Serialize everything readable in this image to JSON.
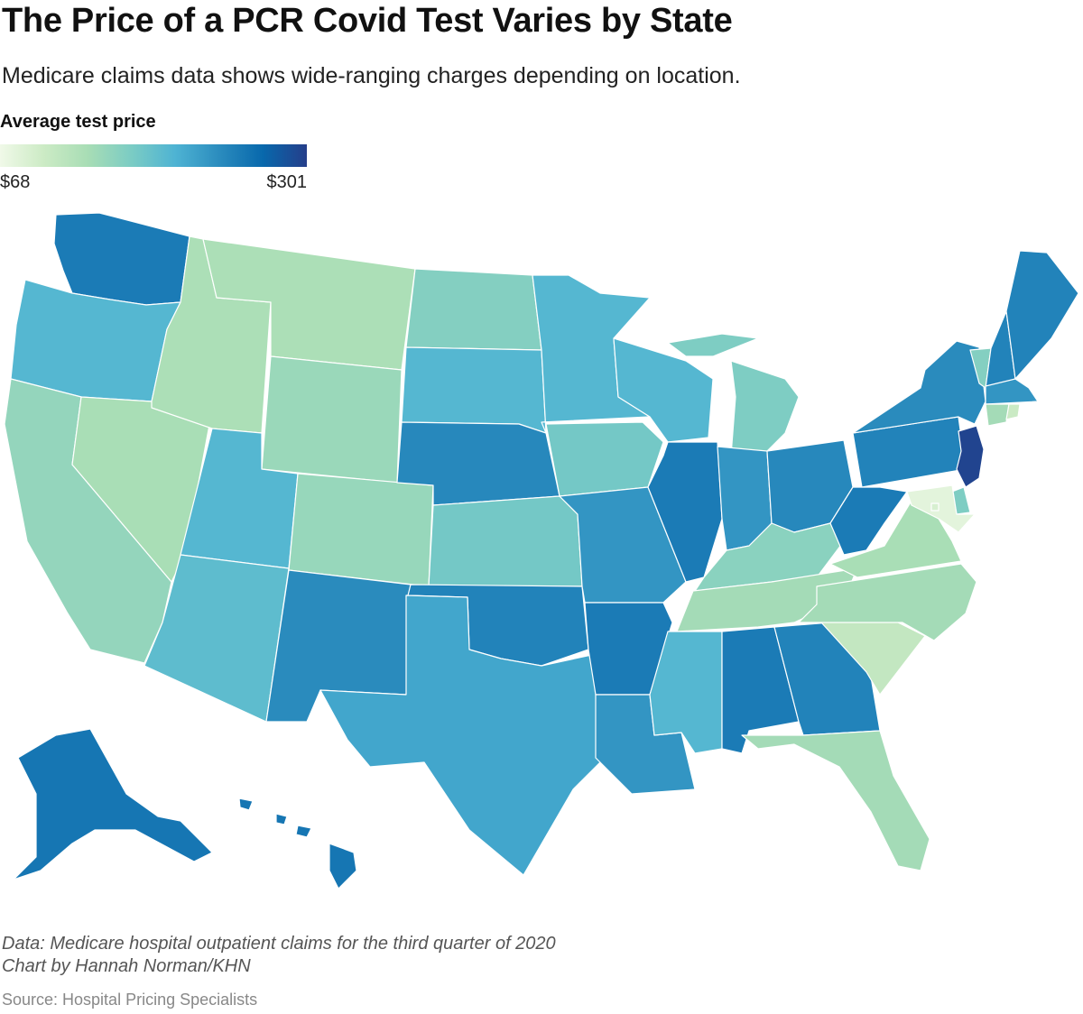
{
  "title": "The Price of a PCR Covid Test Varies by State",
  "subtitle": "Medicare claims data shows wide-ranging charges depending on location.",
  "legend": {
    "title": "Average test price",
    "min_label": "$68",
    "max_label": "$301",
    "stops": [
      "#f0f9e8",
      "#ccebc5",
      "#a8ddb5",
      "#7bccc4",
      "#4eb3d3",
      "#2b8cbe",
      "#0868ac",
      "#253e8a"
    ]
  },
  "footer": {
    "data_note": "Data: Medicare hospital outpatient claims for the third quarter of 2020",
    "credit": "Chart by Hannah Norman/KHN",
    "source": "Source: Hospital Pricing Specialists"
  },
  "chart_data": {
    "type": "choropleth",
    "title": "The Price of a PCR Covid Test Varies by State",
    "value_label": "Average test price",
    "units": "USD",
    "range": [
      68,
      301
    ],
    "states": [
      {
        "code": "WA",
        "level": 0.78
      },
      {
        "code": "OR",
        "level": 0.55
      },
      {
        "code": "CA",
        "level": 0.35
      },
      {
        "code": "NV",
        "level": 0.28
      },
      {
        "code": "ID",
        "level": 0.27
      },
      {
        "code": "MT",
        "level": 0.27
      },
      {
        "code": "WY",
        "level": 0.33
      },
      {
        "code": "UT",
        "level": 0.55
      },
      {
        "code": "AZ",
        "level": 0.52
      },
      {
        "code": "CO",
        "level": 0.34
      },
      {
        "code": "NM",
        "level": 0.72
      },
      {
        "code": "ND",
        "level": 0.4
      },
      {
        "code": "SD",
        "level": 0.55
      },
      {
        "code": "NE",
        "level": 0.73
      },
      {
        "code": "KS",
        "level": 0.45
      },
      {
        "code": "OK",
        "level": 0.75
      },
      {
        "code": "TX",
        "level": 0.62
      },
      {
        "code": "MN",
        "level": 0.55
      },
      {
        "code": "IA",
        "level": 0.45
      },
      {
        "code": "MO",
        "level": 0.68
      },
      {
        "code": "AR",
        "level": 0.78
      },
      {
        "code": "LA",
        "level": 0.68
      },
      {
        "code": "WI",
        "level": 0.55
      },
      {
        "code": "IL",
        "level": 0.78
      },
      {
        "code": "MI",
        "level": 0.42
      },
      {
        "code": "IN",
        "level": 0.68
      },
      {
        "code": "OH",
        "level": 0.73
      },
      {
        "code": "KY",
        "level": 0.38
      },
      {
        "code": "TN",
        "level": 0.3
      },
      {
        "code": "MS",
        "level": 0.55
      },
      {
        "code": "AL",
        "level": 0.78
      },
      {
        "code": "GA",
        "level": 0.75
      },
      {
        "code": "FL",
        "level": 0.3
      },
      {
        "code": "SC",
        "level": 0.18
      },
      {
        "code": "NC",
        "level": 0.3
      },
      {
        "code": "VA",
        "level": 0.28
      },
      {
        "code": "WV",
        "level": 0.78
      },
      {
        "code": "PA",
        "level": 0.75
      },
      {
        "code": "NY",
        "level": 0.72
      },
      {
        "code": "VT",
        "level": 0.4
      },
      {
        "code": "NH",
        "level": 0.75
      },
      {
        "code": "ME",
        "level": 0.75
      },
      {
        "code": "MA",
        "level": 0.68
      },
      {
        "code": "CT",
        "level": 0.3
      },
      {
        "code": "RI",
        "level": 0.15
      },
      {
        "code": "NJ",
        "level": 0.98
      },
      {
        "code": "DE",
        "level": 0.42
      },
      {
        "code": "MD",
        "level": 0.05
      },
      {
        "code": "DC",
        "level": 0.1
      },
      {
        "code": "AK",
        "level": 0.8
      },
      {
        "code": "HI",
        "level": 0.8
      }
    ]
  }
}
